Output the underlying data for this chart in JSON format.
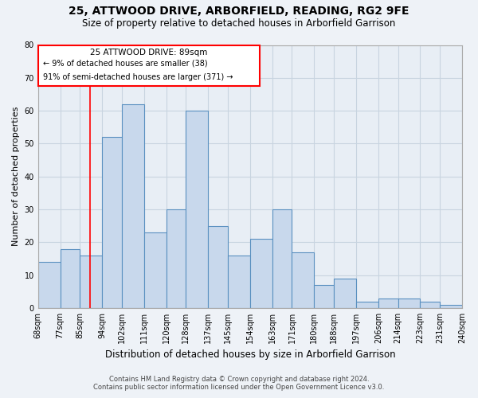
{
  "title": "25, ATTWOOD DRIVE, ARBORFIELD, READING, RG2 9FE",
  "subtitle": "Size of property relative to detached houses in Arborfield Garrison",
  "xlabel": "Distribution of detached houses by size in Arborfield Garrison",
  "ylabel": "Number of detached properties",
  "bar_edges": [
    68,
    77,
    85,
    94,
    102,
    111,
    120,
    128,
    137,
    145,
    154,
    163,
    171,
    180,
    188,
    197,
    206,
    214,
    223,
    231,
    240
  ],
  "bar_heights": [
    14,
    18,
    16,
    52,
    62,
    23,
    30,
    60,
    25,
    16,
    21,
    30,
    17,
    7,
    9,
    2,
    3,
    3,
    2,
    1
  ],
  "bar_color": "#c8d8ec",
  "bar_edge_color": "#5a90c0",
  "reference_line_x": 89,
  "ylim": [
    0,
    80
  ],
  "yticks": [
    0,
    10,
    20,
    30,
    40,
    50,
    60,
    70,
    80
  ],
  "tick_labels": [
    "68sqm",
    "77sqm",
    "85sqm",
    "94sqm",
    "102sqm",
    "111sqm",
    "120sqm",
    "128sqm",
    "137sqm",
    "145sqm",
    "154sqm",
    "163sqm",
    "171sqm",
    "180sqm",
    "188sqm",
    "197sqm",
    "206sqm",
    "214sqm",
    "223sqm",
    "231sqm",
    "240sqm"
  ],
  "ann_line1": "25 ATTWOOD DRIVE: 89sqm",
  "ann_line2": "← 9% of detached houses are smaller (38)",
  "ann_line3": "91% of semi-detached houses are larger (371) →",
  "footnote1": "Contains HM Land Registry data © Crown copyright and database right 2024.",
  "footnote2": "Contains public sector information licensed under the Open Government Licence v3.0.",
  "bg_color": "#eef2f7",
  "plot_bg_color": "#e8eef5",
  "grid_color": "#c8d4e0"
}
